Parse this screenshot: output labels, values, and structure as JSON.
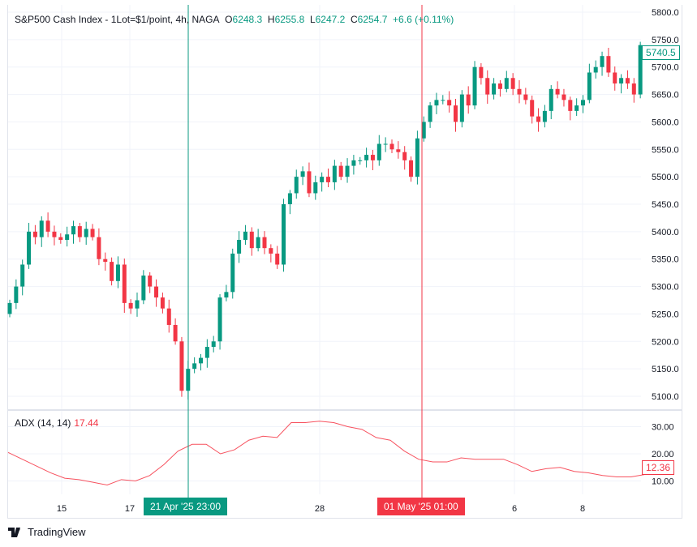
{
  "header": {
    "symbol": "S&P500 Cash Index - 1Lot=$1/point, 4h, NAGA",
    "o_label": "O",
    "o": "6248.3",
    "h_label": "H",
    "h": "6255.8",
    "l_label": "L",
    "l": "6247.2",
    "c_label": "C",
    "c": "6254.7",
    "change": "+6.6 (+0.11%)"
  },
  "indicator": {
    "label": "ADX (14, 14)",
    "value": "17.44",
    "last_badge": "12.36"
  },
  "price_badge": "5740.5",
  "crosshair_green": "21 Apr '25   23:00",
  "crosshair_red": "01 May '25   01:00",
  "branding": "TradingView",
  "colors": {
    "up": "#089981",
    "down": "#f23645",
    "adx": "#f7525f"
  },
  "chart_data": [
    {
      "type": "candlestick",
      "title": "S&P500 Cash Index 4h",
      "ylim": [
        5100,
        5800
      ],
      "yticks": [
        "5800.0",
        "5750.0",
        "5700.0",
        "5650.0",
        "5600.0",
        "5550.0",
        "5500.0",
        "5450.0",
        "5400.0",
        "5350.0",
        "5300.0",
        "5250.0",
        "5200.0",
        "5150.0",
        "5100.0"
      ],
      "xticks": [
        "15",
        "17",
        "28",
        "6",
        "8"
      ],
      "closes": [
        5270,
        5300,
        5340,
        5400,
        5390,
        5420,
        5400,
        5390,
        5385,
        5395,
        5410,
        5390,
        5405,
        5390,
        5350,
        5345,
        5310,
        5340,
        5270,
        5260,
        5275,
        5320,
        5300,
        5280,
        5260,
        5230,
        5200,
        5110,
        5150,
        5160,
        5170,
        5190,
        5200,
        5280,
        5290,
        5360,
        5385,
        5400,
        5370,
        5390,
        5370,
        5360,
        5340,
        5450,
        5470,
        5500,
        5510,
        5470,
        5490,
        5500,
        5490,
        5520,
        5500,
        5520,
        5530,
        5530,
        5540,
        5530,
        5560,
        5560,
        5550,
        5545,
        5530,
        5500,
        5570,
        5600,
        5630,
        5640,
        5640,
        5630,
        5600,
        5650,
        5630,
        5700,
        5680,
        5650,
        5670,
        5660,
        5680,
        5660,
        5650,
        5640,
        5610,
        5600,
        5620,
        5660,
        5650,
        5640,
        5620,
        5630,
        5640,
        5690,
        5700,
        5720,
        5690,
        5670,
        5680,
        5670,
        5650,
        5740
      ]
    },
    {
      "type": "line",
      "title": "ADX (14, 14)",
      "ylim": [
        10,
        30
      ],
      "yticks": [
        "30.00",
        "20.00",
        "10.00"
      ],
      "values": [
        20.5,
        18,
        15.5,
        13,
        11,
        10.5,
        9.5,
        8.5,
        10.5,
        10,
        12,
        16,
        21,
        23.5,
        23.5,
        20,
        21.5,
        25,
        26.5,
        26,
        31.5,
        31.5,
        32,
        31.5,
        30,
        29,
        26,
        25,
        21,
        18,
        17,
        17,
        18.5,
        18,
        18,
        18,
        16,
        13.5,
        14.5,
        15,
        13.5,
        13,
        12,
        11.5,
        11.5,
        12.4
      ]
    }
  ]
}
